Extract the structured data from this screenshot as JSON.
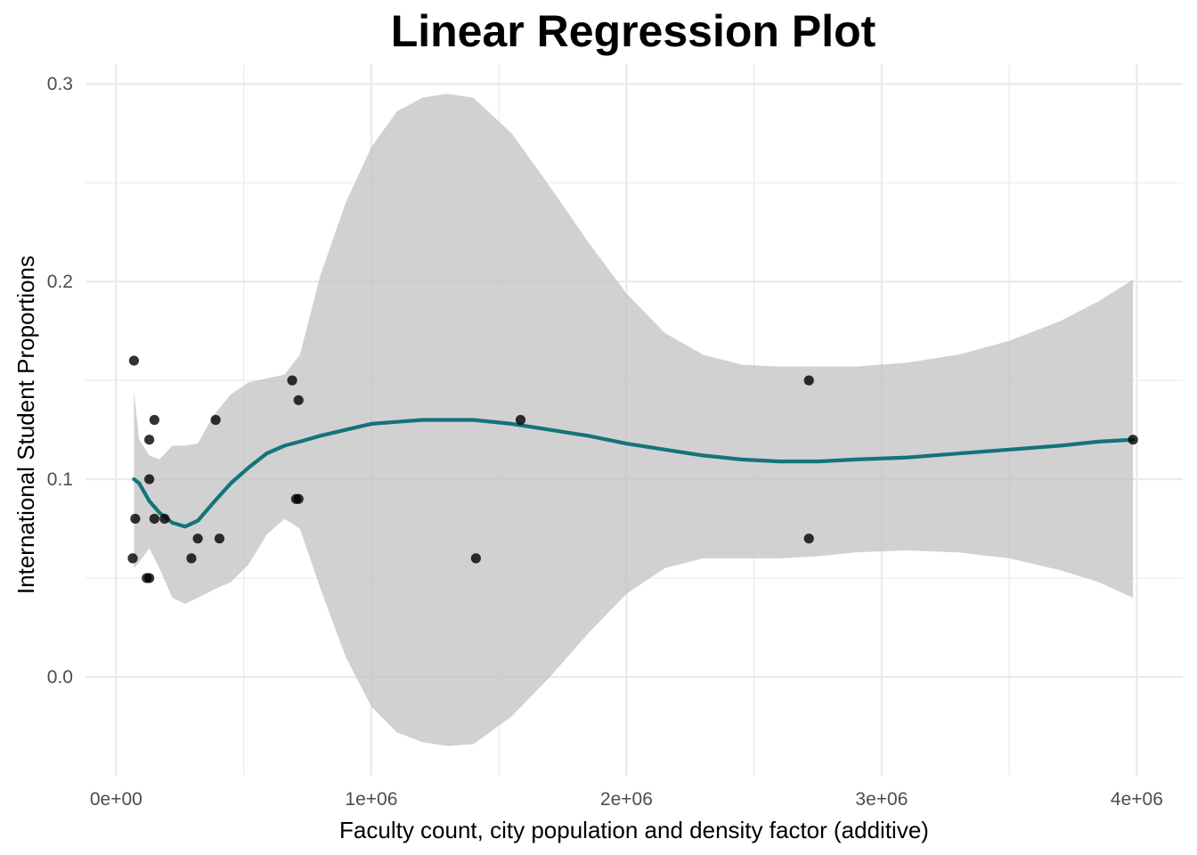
{
  "chart_data": {
    "type": "scatter",
    "title": "Linear Regression Plot",
    "xlabel": "Faculty count, city population and density factor (additive)",
    "ylabel": "International Student Proportions",
    "xlim": [
      -120000,
      4180000
    ],
    "ylim": [
      -0.05,
      0.31
    ],
    "x_ticks": [
      0,
      1000000,
      2000000,
      3000000,
      4000000
    ],
    "x_tick_labels": [
      "0e+00",
      "1e+06",
      "2e+06",
      "3e+06",
      "4e+06"
    ],
    "x_minor_ticks": [
      500000,
      1500000,
      2500000,
      3500000
    ],
    "y_ticks": [
      0.0,
      0.1,
      0.2,
      0.3
    ],
    "y_tick_labels": [
      "0.0",
      "0.1",
      "0.2",
      "0.3"
    ],
    "y_minor_ticks": [
      0.05,
      0.15,
      0.25
    ],
    "grid": true,
    "colors": {
      "points": "#000000",
      "fit_line": "#137479",
      "ribbon": "#bfbfbf",
      "grid": "#ebebeb"
    },
    "points": [
      {
        "x": 70000,
        "y": 0.16
      },
      {
        "x": 65000,
        "y": 0.06
      },
      {
        "x": 75000,
        "y": 0.08
      },
      {
        "x": 120000,
        "y": 0.05
      },
      {
        "x": 130000,
        "y": 0.05
      },
      {
        "x": 130000,
        "y": 0.1
      },
      {
        "x": 130000,
        "y": 0.12
      },
      {
        "x": 150000,
        "y": 0.13
      },
      {
        "x": 150000,
        "y": 0.08
      },
      {
        "x": 190000,
        "y": 0.08
      },
      {
        "x": 295000,
        "y": 0.06
      },
      {
        "x": 320000,
        "y": 0.07
      },
      {
        "x": 390000,
        "y": 0.13
      },
      {
        "x": 405000,
        "y": 0.07
      },
      {
        "x": 690000,
        "y": 0.15
      },
      {
        "x": 705000,
        "y": 0.09
      },
      {
        "x": 715000,
        "y": 0.09
      },
      {
        "x": 715000,
        "y": 0.14
      },
      {
        "x": 1410000,
        "y": 0.06
      },
      {
        "x": 1585000,
        "y": 0.13
      },
      {
        "x": 2715000,
        "y": 0.15
      },
      {
        "x": 2715000,
        "y": 0.07
      },
      {
        "x": 3985000,
        "y": 0.12
      }
    ],
    "fit": [
      {
        "x": 70000,
        "y": 0.1,
        "lo": 0.055,
        "hi": 0.145
      },
      {
        "x": 90000,
        "y": 0.098,
        "lo": 0.058,
        "hi": 0.12
      },
      {
        "x": 130000,
        "y": 0.089,
        "lo": 0.065,
        "hi": 0.112
      },
      {
        "x": 170000,
        "y": 0.083,
        "lo": 0.055,
        "hi": 0.11
      },
      {
        "x": 220000,
        "y": 0.078,
        "lo": 0.04,
        "hi": 0.117
      },
      {
        "x": 270000,
        "y": 0.076,
        "lo": 0.037,
        "hi": 0.117
      },
      {
        "x": 320000,
        "y": 0.079,
        "lo": 0.04,
        "hi": 0.118
      },
      {
        "x": 380000,
        "y": 0.088,
        "lo": 0.044,
        "hi": 0.132
      },
      {
        "x": 450000,
        "y": 0.098,
        "lo": 0.048,
        "hi": 0.143
      },
      {
        "x": 520000,
        "y": 0.106,
        "lo": 0.057,
        "hi": 0.149
      },
      {
        "x": 590000,
        "y": 0.113,
        "lo": 0.072,
        "hi": 0.151
      },
      {
        "x": 660000,
        "y": 0.117,
        "lo": 0.08,
        "hi": 0.153
      },
      {
        "x": 720000,
        "y": 0.119,
        "lo": 0.075,
        "hi": 0.163
      },
      {
        "x": 800000,
        "y": 0.122,
        "lo": 0.045,
        "hi": 0.203
      },
      {
        "x": 900000,
        "y": 0.125,
        "lo": 0.01,
        "hi": 0.24
      },
      {
        "x": 1000000,
        "y": 0.128,
        "lo": -0.015,
        "hi": 0.268
      },
      {
        "x": 1100000,
        "y": 0.129,
        "lo": -0.028,
        "hi": 0.286
      },
      {
        "x": 1200000,
        "y": 0.13,
        "lo": -0.033,
        "hi": 0.293
      },
      {
        "x": 1300000,
        "y": 0.13,
        "lo": -0.035,
        "hi": 0.295
      },
      {
        "x": 1400000,
        "y": 0.13,
        "lo": -0.034,
        "hi": 0.293
      },
      {
        "x": 1550000,
        "y": 0.128,
        "lo": -0.02,
        "hi": 0.275
      },
      {
        "x": 1700000,
        "y": 0.125,
        "lo": 0.0,
        "hi": 0.248
      },
      {
        "x": 1850000,
        "y": 0.122,
        "lo": 0.022,
        "hi": 0.22
      },
      {
        "x": 2000000,
        "y": 0.118,
        "lo": 0.042,
        "hi": 0.194
      },
      {
        "x": 2150000,
        "y": 0.115,
        "lo": 0.055,
        "hi": 0.174
      },
      {
        "x": 2300000,
        "y": 0.112,
        "lo": 0.06,
        "hi": 0.163
      },
      {
        "x": 2450000,
        "y": 0.11,
        "lo": 0.06,
        "hi": 0.158
      },
      {
        "x": 2600000,
        "y": 0.109,
        "lo": 0.06,
        "hi": 0.157
      },
      {
        "x": 2750000,
        "y": 0.109,
        "lo": 0.061,
        "hi": 0.157
      },
      {
        "x": 2900000,
        "y": 0.11,
        "lo": 0.063,
        "hi": 0.157
      },
      {
        "x": 3100000,
        "y": 0.111,
        "lo": 0.064,
        "hi": 0.159
      },
      {
        "x": 3300000,
        "y": 0.113,
        "lo": 0.063,
        "hi": 0.163
      },
      {
        "x": 3500000,
        "y": 0.115,
        "lo": 0.06,
        "hi": 0.17
      },
      {
        "x": 3700000,
        "y": 0.117,
        "lo": 0.054,
        "hi": 0.18
      },
      {
        "x": 3850000,
        "y": 0.119,
        "lo": 0.048,
        "hi": 0.19
      },
      {
        "x": 3985000,
        "y": 0.12,
        "lo": 0.04,
        "hi": 0.201
      }
    ]
  }
}
